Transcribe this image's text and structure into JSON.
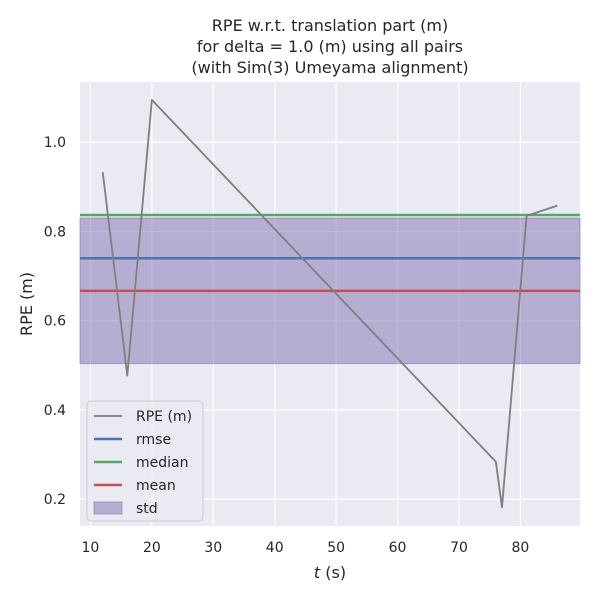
{
  "chart_data": {
    "type": "line",
    "title": [
      "RPE w.r.t. translation part (m)",
      "for delta = 1.0 (m) using all pairs",
      "(with Sim(3) Umeyama alignment)"
    ],
    "xlabel_var": "t",
    "xlabel_unit": " (s)",
    "ylabel": "RPE (m)",
    "xlim": [
      8.3,
      89.7
    ],
    "ylim": [
      0.14,
      1.135
    ],
    "xticks": [
      10,
      20,
      30,
      40,
      50,
      60,
      70,
      80
    ],
    "yticks": [
      0.2,
      0.4,
      0.6,
      0.8,
      1.0
    ],
    "ytick_labels": [
      "0.2",
      "0.4",
      "0.6",
      "0.8",
      "1.0"
    ],
    "grid": true,
    "legend_position": "lower-left",
    "series": [
      {
        "name": "RPE (m)",
        "color": "#7f7f7f",
        "x": [
          12,
          16,
          20,
          76,
          77,
          81,
          86
        ],
        "y": [
          0.933,
          0.477,
          1.095,
          0.284,
          0.182,
          0.835,
          0.858
        ]
      }
    ],
    "stats": {
      "rmse": {
        "label": "rmse",
        "value": 0.74,
        "color": "#4c72b0"
      },
      "median": {
        "label": "median",
        "value": 0.837,
        "color": "#55a868"
      },
      "mean": {
        "label": "mean",
        "value": 0.667,
        "color": "#c44e52"
      },
      "std": {
        "label": "std",
        "range": [
          0.504,
          0.83
        ],
        "color": "#8172b2"
      }
    },
    "legend": [
      "RPE (m)",
      "rmse",
      "median",
      "mean",
      "std"
    ],
    "colors": {
      "background": "#eaeaf2",
      "grid": "#ffffff",
      "text": "#262626"
    }
  }
}
